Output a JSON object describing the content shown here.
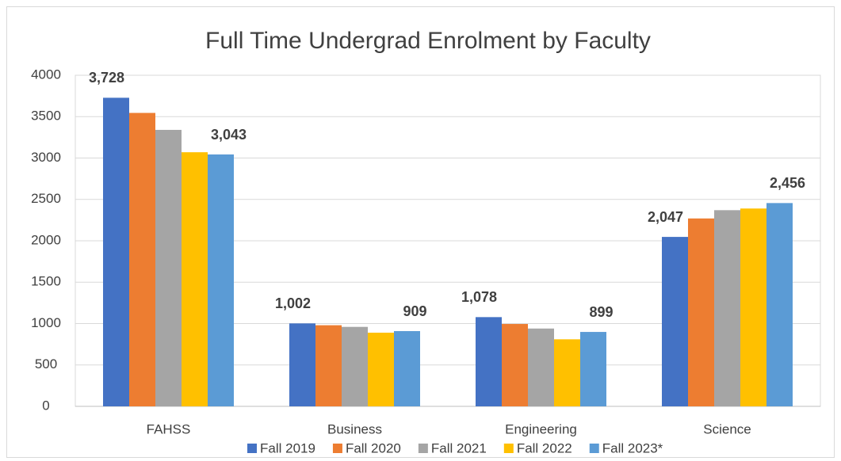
{
  "chart_data": {
    "type": "bar",
    "title": "Full Time Undergrad  Enrolment by Faculty",
    "categories": [
      "FAHSS",
      "Business",
      "Engineering",
      "Science"
    ],
    "series": [
      {
        "name": "Fall 2019",
        "color": "#4472c4",
        "values": [
          3728,
          1002,
          1078,
          2047
        ],
        "value_labels": [
          "3,728",
          "1,002",
          "1,078",
          "2,047"
        ]
      },
      {
        "name": "Fall 2020",
        "color": "#ed7d31",
        "values": [
          3545,
          980,
          995,
          2270
        ]
      },
      {
        "name": "Fall 2021",
        "color": "#a5a5a5",
        "values": [
          3340,
          960,
          940,
          2370
        ]
      },
      {
        "name": "Fall 2022",
        "color": "#ffc000",
        "values": [
          3070,
          890,
          810,
          2390
        ]
      },
      {
        "name": "Fall 2023*",
        "color": "#5b9bd5",
        "values": [
          3043,
          909,
          899,
          2456
        ],
        "value_labels": [
          "3,043",
          "909",
          "899",
          "2,456"
        ]
      }
    ],
    "ylim": [
      0,
      4000
    ],
    "yticks": [
      0,
      500,
      1000,
      1500,
      2000,
      2500,
      3000,
      3500,
      4000
    ],
    "grid": true,
    "legend": "bottom"
  }
}
